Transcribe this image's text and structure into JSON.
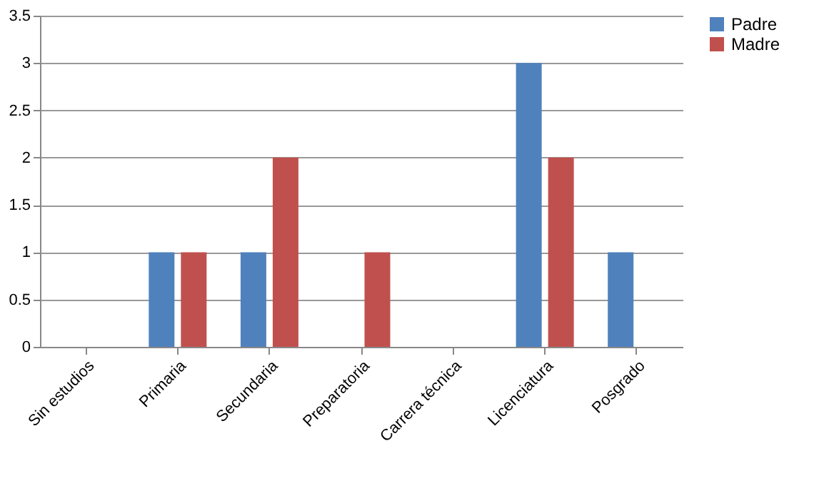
{
  "chart_data": {
    "type": "bar",
    "categories": [
      "Sin estudios",
      "Primaria",
      "Secundaria",
      "Preparatoria",
      "Carrera técnica",
      "Licenciatura",
      "Posgrado"
    ],
    "series": [
      {
        "name": "Padre",
        "color": "#4f81bd",
        "values": [
          0,
          1,
          1,
          0,
          0,
          3,
          1
        ]
      },
      {
        "name": "Madre",
        "color": "#c0504d",
        "values": [
          0,
          1,
          2,
          1,
          0,
          2,
          0
        ]
      }
    ],
    "ylim": [
      0,
      3.5
    ],
    "yticks": [
      0,
      0.5,
      1,
      1.5,
      2,
      2.5,
      3,
      3.5
    ],
    "grid": "y",
    "legend": "right"
  }
}
